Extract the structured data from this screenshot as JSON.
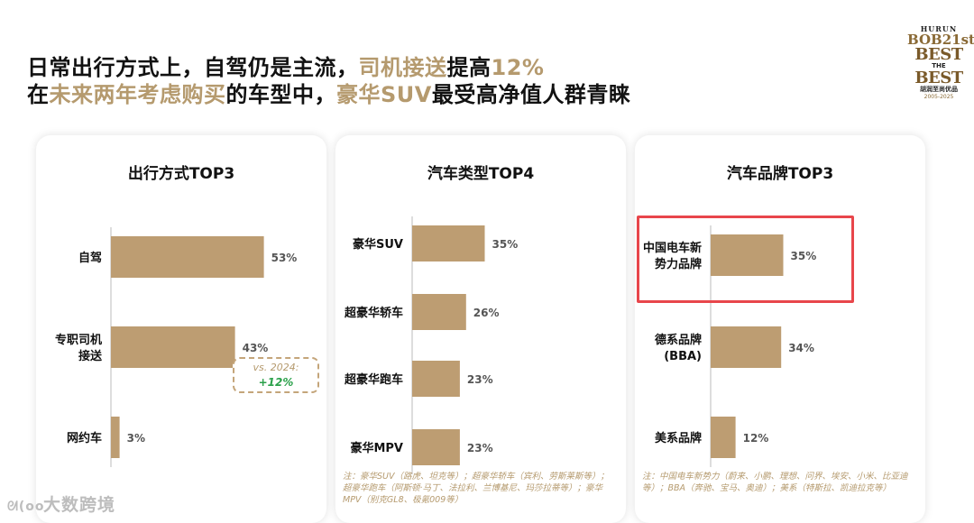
{
  "headline": {
    "line1_a": "日常出行方式上，自驾仍是主流，",
    "line1_b": "司机接送",
    "line1_c": "提高",
    "line1_d": "12%",
    "line2_a": "在",
    "line2_b": "未来两年考虑购买",
    "line2_c": "的车型中，",
    "line2_d": "豪华SUV",
    "line2_e": "最受高净值人群青睐"
  },
  "logo": {
    "line1": "HURUN",
    "line2": "BOB21st",
    "line3a": "BEST",
    "line3b": "THE",
    "line3c": "BEST",
    "line4": "胡润至尚优品",
    "line5": "2005-2025"
  },
  "watermark": {
    "icon": "ᘛ(oo",
    "text": "大数跨境"
  },
  "colors": {
    "bar": "#bd9d72",
    "accent": "#b59a6e",
    "highlight": "#e8464b",
    "increase": "#2aa04a"
  },
  "chart_data": [
    {
      "type": "bar",
      "orientation": "horizontal",
      "title": "出行方式TOP3",
      "categories": [
        [
          "自驾"
        ],
        [
          "专职司机",
          "接送"
        ],
        [
          "网约车"
        ]
      ],
      "values": [
        53,
        43,
        3
      ],
      "value_labels": [
        "53%",
        "43%",
        "3%"
      ],
      "xlim": [
        0,
        100
      ],
      "annotation": {
        "line1": "vs. 2024:",
        "line2": "+12%"
      },
      "note": ""
    },
    {
      "type": "bar",
      "orientation": "horizontal",
      "title": "汽车类型TOP4",
      "categories": [
        [
          "豪华SUV"
        ],
        [
          "超豪华轿车"
        ],
        [
          "超豪华跑车"
        ],
        [
          "豪华MPV"
        ]
      ],
      "values": [
        35,
        26,
        23,
        23
      ],
      "value_labels": [
        "35%",
        "26%",
        "23%",
        "23%"
      ],
      "xlim": [
        0,
        100
      ],
      "note": "注：豪华SUV（路虎、坦克等）；超豪华轿车（宾利、劳斯莱斯等）；超豪华跑车（阿斯顿·马丁、法拉利、兰博基尼、玛莎拉蒂等）；豪华MPV（别克GL8、极氪009等）"
    },
    {
      "type": "bar",
      "orientation": "horizontal",
      "title": "汽车品牌TOP3",
      "categories": [
        [
          "中国电车新",
          "势力品牌"
        ],
        [
          "德系品牌",
          "(BBA)"
        ],
        [
          "美系品牌"
        ]
      ],
      "values": [
        35,
        34,
        12
      ],
      "value_labels": [
        "35%",
        "34%",
        "12%"
      ],
      "xlim": [
        0,
        100
      ],
      "note": "注：中国电车新势力（蔚来、小鹏、理想、问界、埃安、小米、比亚迪等）；BBA（奔驰、宝马、奥迪）；美系（特斯拉、凯迪拉克等）"
    }
  ]
}
